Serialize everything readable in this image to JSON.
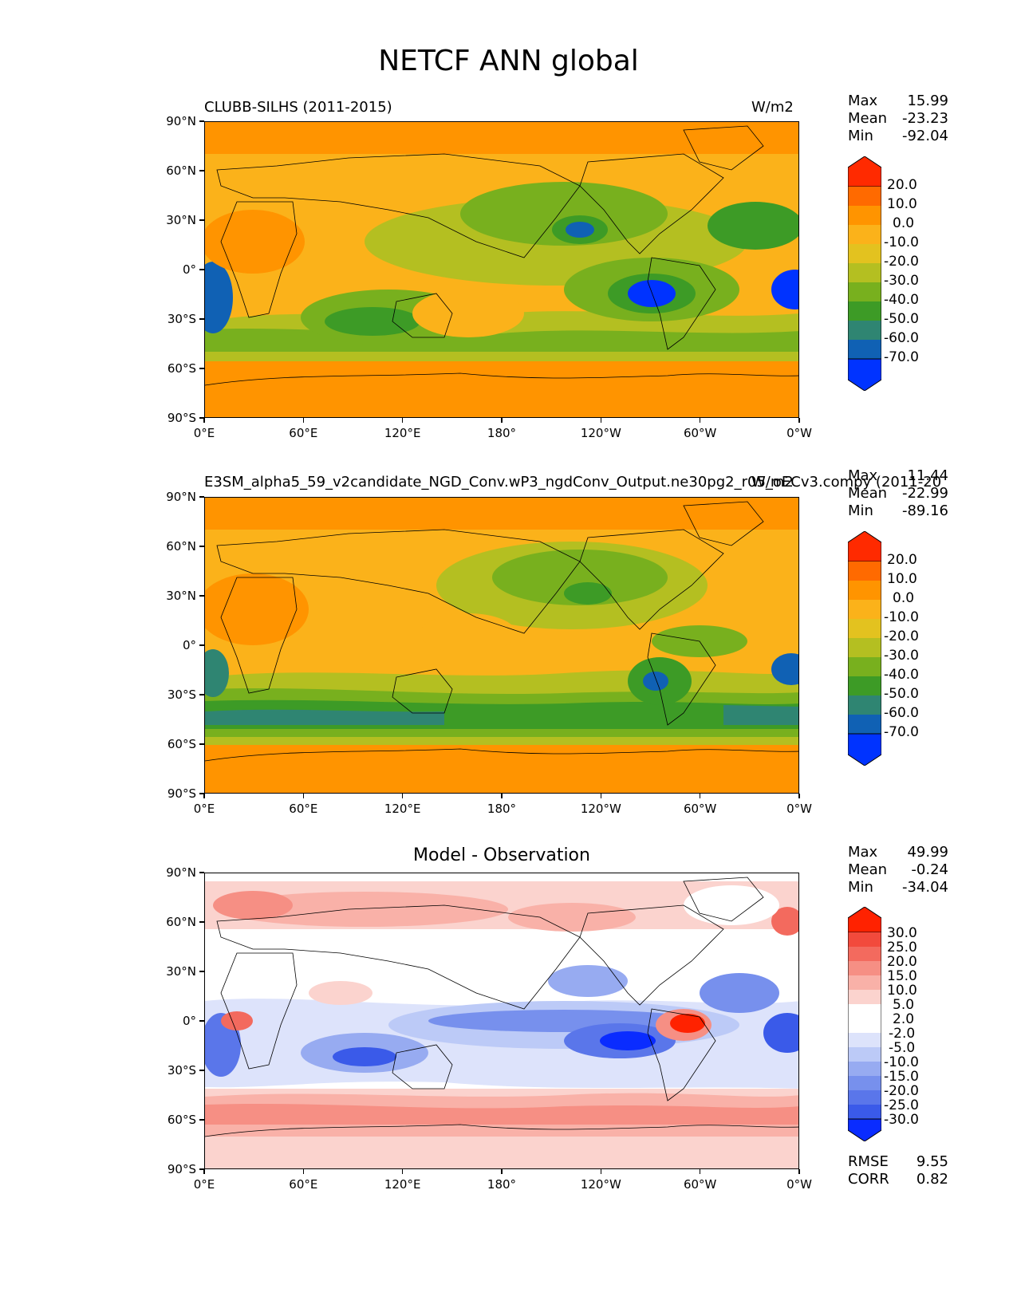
{
  "figure": {
    "title": "NETCF ANN global"
  },
  "axes": {
    "lat_ticks": [
      "90°N",
      "60°N",
      "30°N",
      "0°",
      "30°S",
      "60°S",
      "90°S"
    ],
    "lon_ticks": [
      "0°E",
      "60°E",
      "120°E",
      "180°",
      "120°W",
      "60°W",
      "0°W"
    ]
  },
  "panels": [
    {
      "title_left": "CLUBB-SILHS (2011-2015)",
      "title_right": "W/m2",
      "title_center": "",
      "stats": [
        {
          "label": "Max",
          "value": "15.99"
        },
        {
          "label": "Mean",
          "value": "-23.23"
        },
        {
          "label": "Min",
          "value": "-92.04"
        }
      ],
      "colorbar_labels": [
        "20.0",
        "10.0",
        "0.0",
        "-10.0",
        "-20.0",
        "-30.0",
        "-40.0",
        "-50.0",
        "-60.0",
        "-70.0"
      ]
    },
    {
      "title_left": "E3SM_alpha5_59_v2candidate_NGD_Conv.wP3_ngdConv_Output.ne30pg2_r05_oECv3.compy (2011-20",
      "title_right": "W/m2",
      "title_center": "",
      "stats": [
        {
          "label": "Max",
          "value": "11.44"
        },
        {
          "label": "Mean",
          "value": "-22.99"
        },
        {
          "label": "Min",
          "value": "-89.16"
        }
      ],
      "colorbar_labels": [
        "20.0",
        "10.0",
        "0.0",
        "-10.0",
        "-20.0",
        "-30.0",
        "-40.0",
        "-50.0",
        "-60.0",
        "-70.0"
      ]
    },
    {
      "title_left": "",
      "title_right": "",
      "title_center": "Model - Observation",
      "stats": [
        {
          "label": "Max",
          "value": "49.99"
        },
        {
          "label": "Mean",
          "value": "-0.24"
        },
        {
          "label": "Min",
          "value": "-34.04"
        }
      ],
      "colorbar_labels": [
        "30.0",
        "25.0",
        "20.0",
        "15.0",
        "10.0",
        "5.0",
        "2.0",
        "-2.0",
        "-5.0",
        "-10.0",
        "-15.0",
        "-20.0",
        "-25.0",
        "-30.0"
      ],
      "metrics": [
        {
          "label": "RMSE",
          "value": "9.55"
        },
        {
          "label": "CORR",
          "value": "0.82"
        }
      ]
    }
  ],
  "colors": {
    "test_ref_scale": [
      "#ff2a00",
      "#ff6a00",
      "#ff9400",
      "#fbb21a",
      "#e3c21f",
      "#b4bf21",
      "#78b01e",
      "#3d9b26",
      "#2f8572",
      "#1061b4",
      "#0033ff"
    ],
    "diff_scale": [
      "#ff2200",
      "#f24a3c",
      "#f36a5e",
      "#f68f84",
      "#f9b1a8",
      "#fbd3ce",
      "#ffffff",
      "#ffffff",
      "#dde3fb",
      "#bccaf7",
      "#97abf1",
      "#7790ed",
      "#5a76ea",
      "#3a5ae9",
      "#0a2cff"
    ]
  }
}
